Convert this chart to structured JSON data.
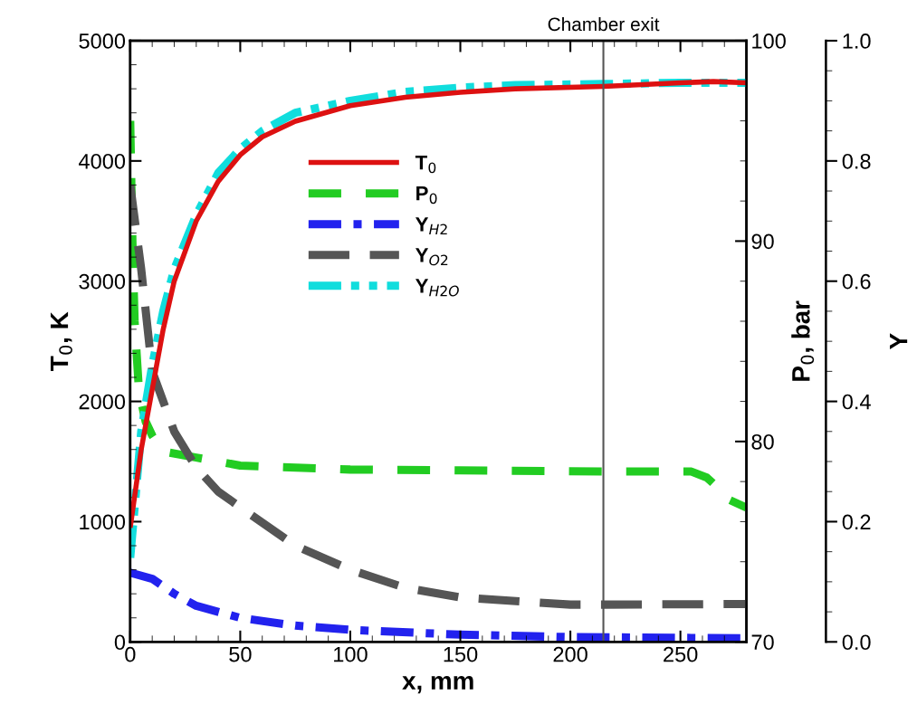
{
  "chart_data": {
    "type": "line",
    "xlabel": "x, mm",
    "ylabel": "T$_{0}$, K",
    "y2label": "P$_{0}$, bar",
    "y3label": "Y",
    "xlim": [
      0,
      280
    ],
    "xticks": [
      0,
      50,
      100,
      150,
      200,
      250
    ],
    "ylim": [
      0,
      5000
    ],
    "yticks": [
      0,
      1000,
      2000,
      3000,
      4000,
      5000
    ],
    "y2lim": [
      70,
      100
    ],
    "y2ticks": [
      70,
      80,
      90,
      100
    ],
    "y3lim": [
      0,
      1
    ],
    "y3ticks": [
      {
        "value": 0,
        "label": "0.0"
      },
      {
        "value": 0.2,
        "label": "0.2"
      },
      {
        "value": 0.4,
        "label": "0.4"
      },
      {
        "value": 0.6,
        "label": "0.6"
      },
      {
        "value": 0.8,
        "label": "0.8"
      },
      {
        "value": 1,
        "label": "1.0"
      }
    ],
    "legend": "center",
    "grid": false,
    "ref_lines": [
      {
        "axis": "x",
        "value": 215,
        "label": "Chamber exit",
        "color": "#555555",
        "line_style": "solid"
      }
    ],
    "series": [
      {
        "name": "T$_{0}$",
        "color": "#dd1111",
        "line_style": "solid",
        "x": [
          0,
          5,
          10,
          15,
          20,
          30,
          40,
          50,
          60,
          75,
          100,
          125,
          150,
          175,
          215,
          250,
          265,
          280
        ],
        "values": [
          950,
          1600,
          2100,
          2600,
          3000,
          3500,
          3830,
          4050,
          4200,
          4330,
          4460,
          4530,
          4570,
          4600,
          4620,
          4650,
          4660,
          4650
        ]
      },
      {
        "name": "P$_{0}$",
        "color": "#22cc22",
        "line_style": "dashed",
        "axis": "y2",
        "x": [
          0,
          1,
          2,
          4,
          7,
          10,
          15,
          30,
          50,
          100,
          215,
          255,
          262,
          268,
          272,
          280
        ],
        "values": [
          96,
          90,
          86,
          82.5,
          81,
          80.3,
          79.5,
          79.2,
          78.8,
          78.6,
          78.5,
          78.5,
          78.2,
          77.6,
          77.1,
          76.7
        ]
      },
      {
        "name": "Y$_{H2}$",
        "color": "#2222ee",
        "line_style": "dashdot",
        "axis": "y3",
        "x": [
          0,
          10,
          20,
          30,
          50,
          75,
          100,
          150,
          200,
          280
        ],
        "values": [
          0.115,
          0.105,
          0.08,
          0.06,
          0.04,
          0.027,
          0.02,
          0.012,
          0.008,
          0.006
        ]
      },
      {
        "name": "Y$_{O2}$",
        "color": "#555555",
        "line_style": "longdash",
        "axis": "y3",
        "x": [
          0,
          5,
          10,
          15,
          20,
          30,
          40,
          50,
          75,
          100,
          125,
          150,
          200,
          215,
          280
        ],
        "values": [
          0.76,
          0.62,
          0.45,
          0.4,
          0.35,
          0.29,
          0.25,
          0.224,
          0.16,
          0.12,
          0.09,
          0.074,
          0.062,
          0.062,
          0.063
        ]
      },
      {
        "name": "Y$_{H2O}$",
        "color": "#11dddd",
        "line_style": "dashdotdot",
        "axis": "y3",
        "x": [
          0,
          5,
          10,
          15,
          20,
          30,
          40,
          50,
          60,
          75,
          100,
          125,
          150,
          175,
          215,
          250,
          280
        ],
        "values": [
          0.14,
          0.35,
          0.46,
          0.55,
          0.62,
          0.71,
          0.78,
          0.82,
          0.85,
          0.88,
          0.9,
          0.915,
          0.922,
          0.926,
          0.928,
          0.93,
          0.93
        ]
      }
    ]
  }
}
